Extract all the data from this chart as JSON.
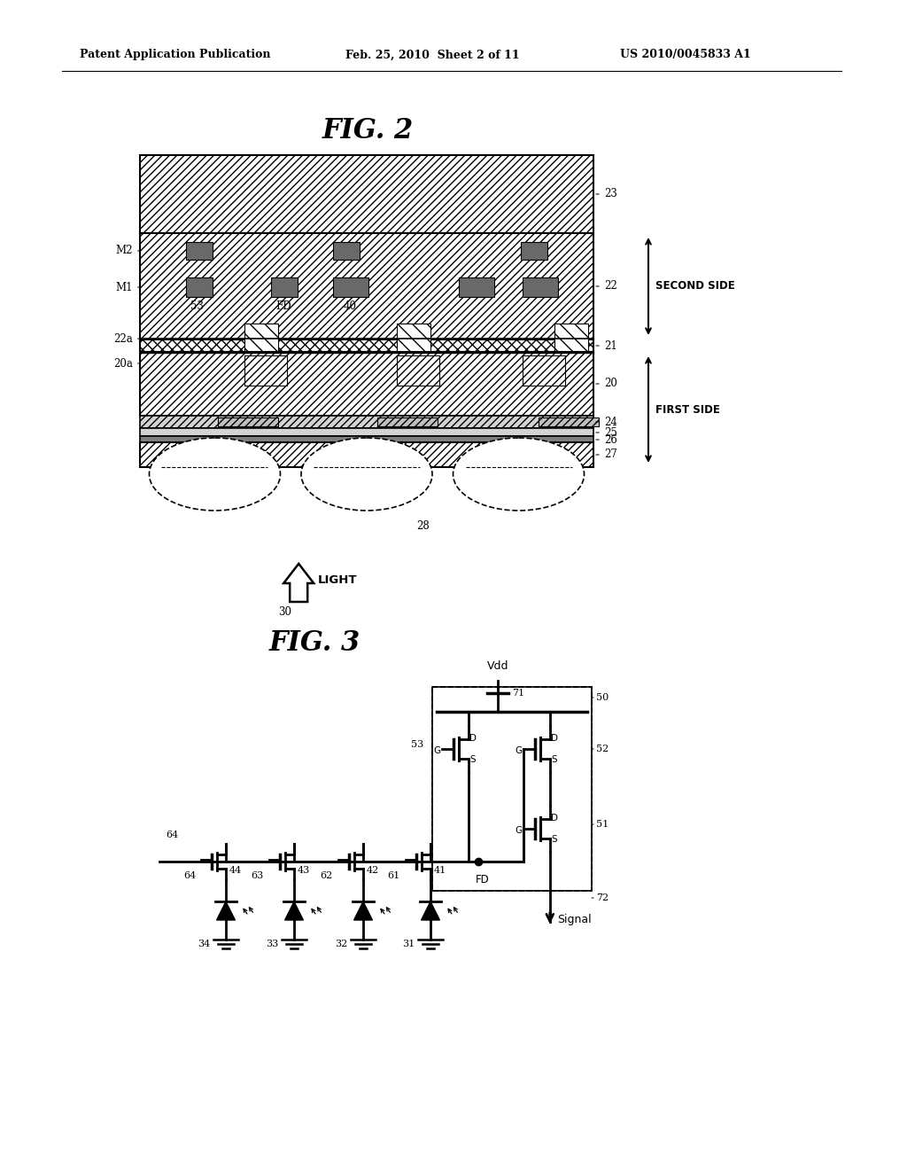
{
  "title_header": "Patent Application Publication",
  "date_header": "Feb. 25, 2010  Sheet 2 of 11",
  "patent_header": "US 2010/0045833 A1",
  "fig2_title": "FIG. 2",
  "fig3_title": "FIG. 3",
  "bg_color": "#ffffff",
  "line_color": "#000000"
}
